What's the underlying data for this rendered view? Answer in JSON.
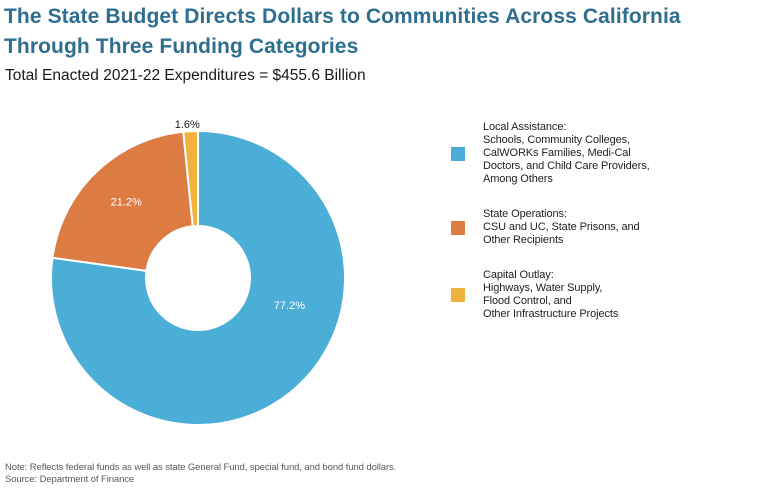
{
  "header": {
    "title_line1": "The State Budget Directs Dollars to Communities Across California",
    "title_line2": "Through Three Funding Categories",
    "title_color": "#2E6E8F",
    "subtitle": "Total Enacted 2021-22 Expenditures = $455.6 Billion"
  },
  "chart_data": {
    "type": "pie",
    "donut": true,
    "title": "The State Budget Directs Dollars to Communities Across California Through Three Funding Categories",
    "subtitle": "Total Enacted 2021-22 Expenditures = $455.6 Billion",
    "total": "$455.6 Billion",
    "categories": [
      "Local Assistance",
      "State Operations",
      "Capital Outlay"
    ],
    "values": [
      77.2,
      21.2,
      1.6
    ],
    "unit": "%",
    "start_angle_deg": 0,
    "direction": "clockwise",
    "legend_position": "right",
    "slices": [
      {
        "key": "local-assistance",
        "name": "Local Assistance",
        "pct": 77.2,
        "label": "77.2%",
        "color": "#4BAED6",
        "label_color": "#FFFFFF",
        "label_angle_deg": 107,
        "label_radius_frac": 0.65
      },
      {
        "key": "state-operations",
        "name": "State Operations",
        "pct": 21.2,
        "label": "21.2%",
        "color": "#DC7B42",
        "label_color": "#FFFFFF",
        "label_angle_deg": 316.5,
        "label_radius_frac": 0.71
      },
      {
        "key": "capital-outlay",
        "name": "Capital Outlay",
        "pct": 1.6,
        "label": "1.6%",
        "color": "#F0B23F",
        "label_color": "#1A1A1A",
        "label_angle_deg": 356,
        "label_radius_frac": 1.045
      }
    ]
  },
  "legend": {
    "items": [
      {
        "key": "local-assistance",
        "color": "#4BAED6",
        "lines": [
          "Local Assistance:",
          "Schools, Community Colleges,",
          "CalWORKs Families, Medi-Cal",
          "Doctors, and Child Care Providers,",
          "Among Others"
        ]
      },
      {
        "key": "state-operations",
        "color": "#DC7B42",
        "lines": [
          "State Operations:",
          "CSU and UC, State Prisons, and",
          "Other Recipients"
        ]
      },
      {
        "key": "capital-outlay",
        "color": "#F0B23F",
        "lines": [
          "Capital Outlay:",
          "Highways, Water Supply,",
          "Flood Control, and",
          "Other Infrastructure Projects"
        ]
      }
    ]
  },
  "footnote": {
    "note": "Note: Reflects federal funds as well as state General Fund, special fund, and bond fund dollars.",
    "source": "Source: Department of Finance"
  }
}
